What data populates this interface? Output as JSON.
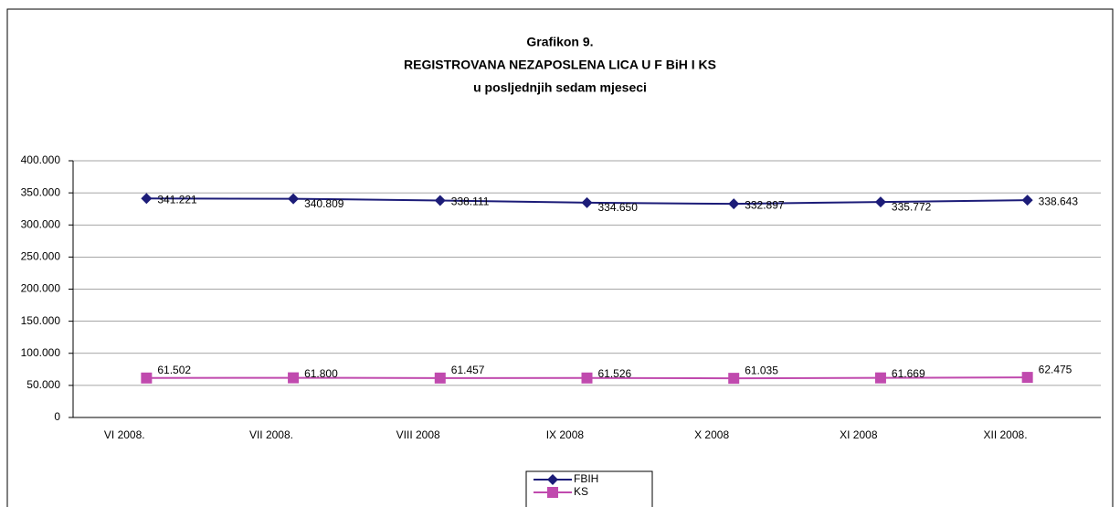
{
  "chart_data": {
    "type": "line",
    "title": [
      "Grafikon 9.",
      "REGISTROVANA NEZAPOSLENA LICA U F BiH I KS",
      "u posljednjih sedam mjeseci"
    ],
    "categories": [
      "VI 2008.",
      "VII 2008.",
      "VIII 2008",
      "IX 2008",
      "X 2008",
      "XI 2008",
      "XII 2008."
    ],
    "series": [
      {
        "name": "FBIH",
        "color": "#1c1c78",
        "marker": "diamond",
        "values": [
          341221,
          340809,
          338111,
          334650,
          332897,
          335772,
          338643
        ],
        "value_labels": [
          "341.221",
          "340.809",
          "338.111",
          "334.650",
          "332.897",
          "335.772",
          "338.643"
        ]
      },
      {
        "name": "KS",
        "color": "#c04aae",
        "marker": "square",
        "values": [
          61502,
          61800,
          61457,
          61526,
          61035,
          61669,
          62475
        ],
        "value_labels": [
          "61.502",
          "61.800",
          "61.457",
          "61.526",
          "61.035",
          "61.669",
          "62.475"
        ]
      }
    ],
    "ylim": [
      0,
      400000
    ],
    "yticks": [
      0,
      {
        "value": 50000,
        "label": "50.000"
      },
      {
        "value": 100000,
        "label": "100.000"
      },
      {
        "value": 150000,
        "label": "150.000"
      },
      {
        "value": 200000,
        "label": "200.000"
      },
      {
        "value": 250000,
        "label": "250.000"
      },
      {
        "value": 300000,
        "label": "300.000"
      },
      {
        "value": 350000,
        "label": "350.000"
      },
      {
        "value": 400000,
        "label": "400.000"
      }
    ],
    "grid": true,
    "legend": "bottom"
  }
}
